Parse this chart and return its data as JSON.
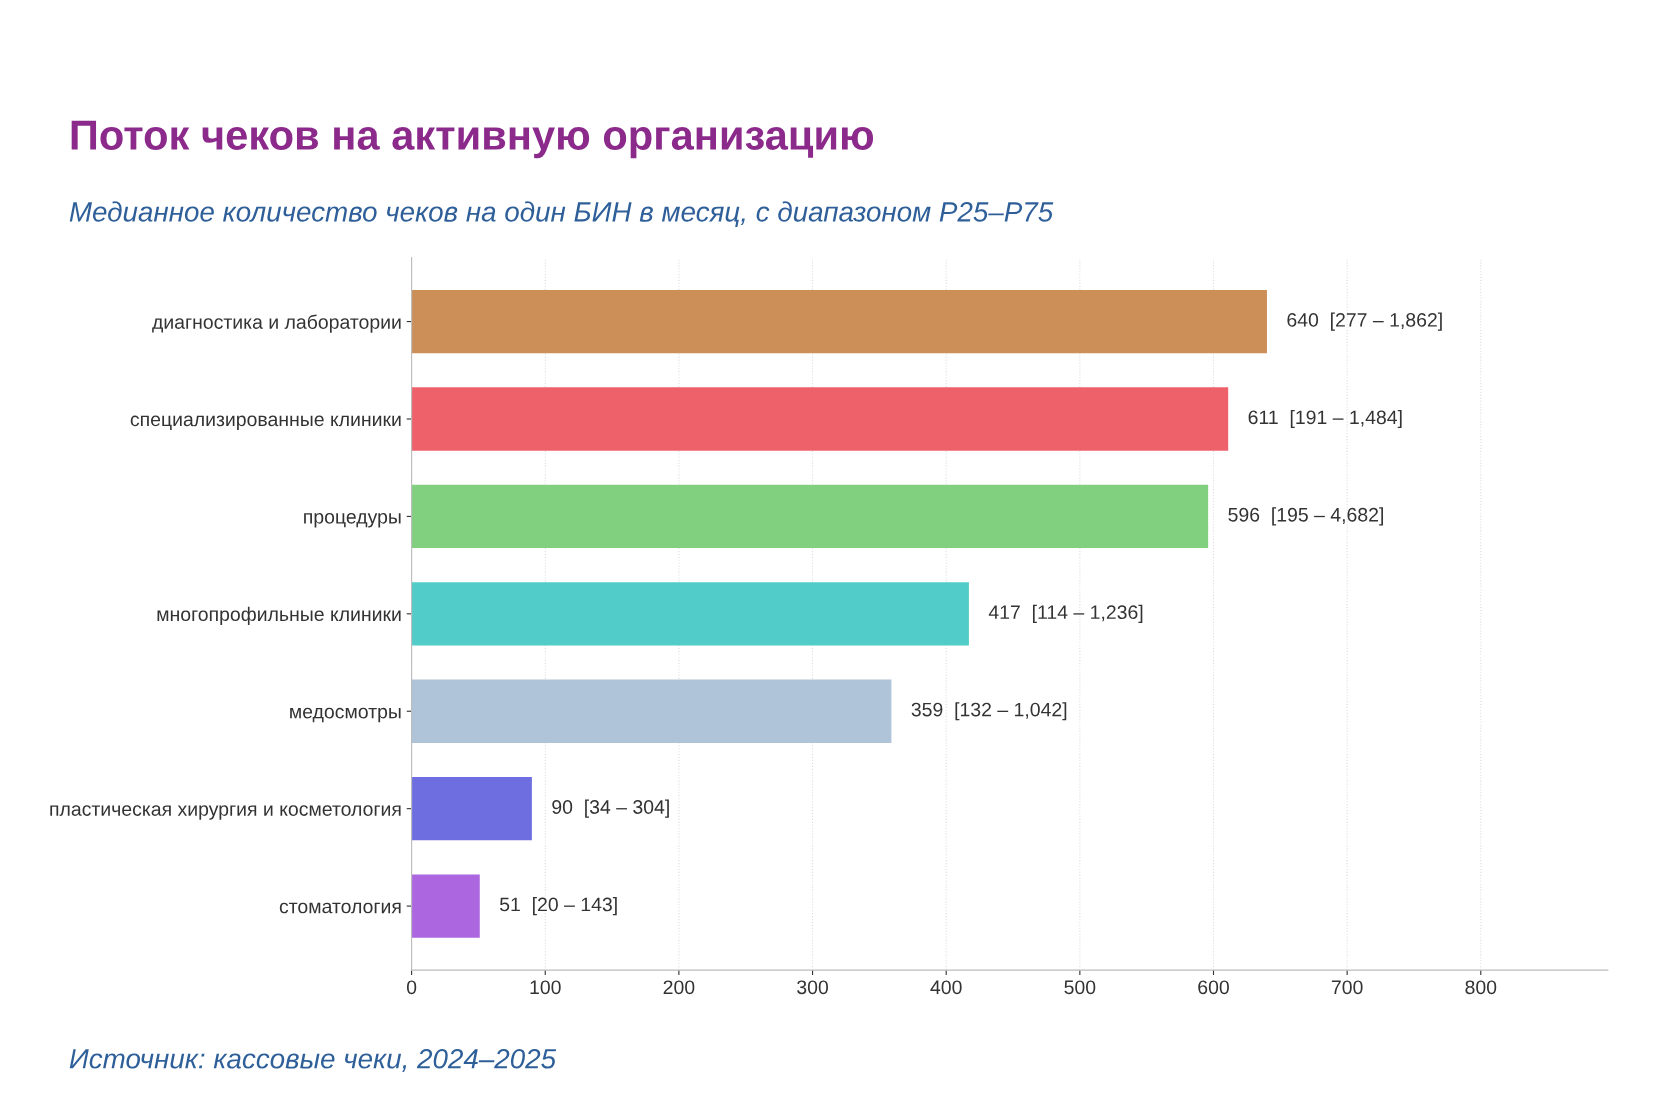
{
  "chart_data": {
    "type": "bar",
    "orientation": "horizontal",
    "title": "Поток чеков на активную организацию",
    "subtitle": "Медианное количество чеков на один БИН в месяц, с диапазоном P25–P75",
    "annotations": [
      "Источник: кассовые чеки, 2024–2025"
    ],
    "categories": [
      "диагностика и лаборатории",
      "специализированные клиники",
      "процедуры",
      "многопрофильные клиники",
      "медосмотры",
      "пластическая хирургия и косметология",
      "стоматология"
    ],
    "values": [
      640,
      611,
      596,
      417,
      359,
      90,
      51
    ],
    "colors": [
      "#cc8f58",
      "#ee616b",
      "#80d080",
      "#52ccc8",
      "#afc4d8",
      "#6e6ee0",
      "#ab66e0"
    ],
    "value_labels": [
      "640  [277 – 1,862]",
      "611  [191 – 1,484]",
      "596  [195 – 4,682]",
      "417  [114 – 1,236]",
      "359  [132 – 1,042]",
      "90  [34 – 304]",
      "51  [20 – 143]"
    ],
    "xlim": [
      0,
      895
    ],
    "xticks": [
      0,
      100,
      200,
      300,
      400,
      500,
      600,
      700,
      800
    ],
    "grid": "x"
  }
}
